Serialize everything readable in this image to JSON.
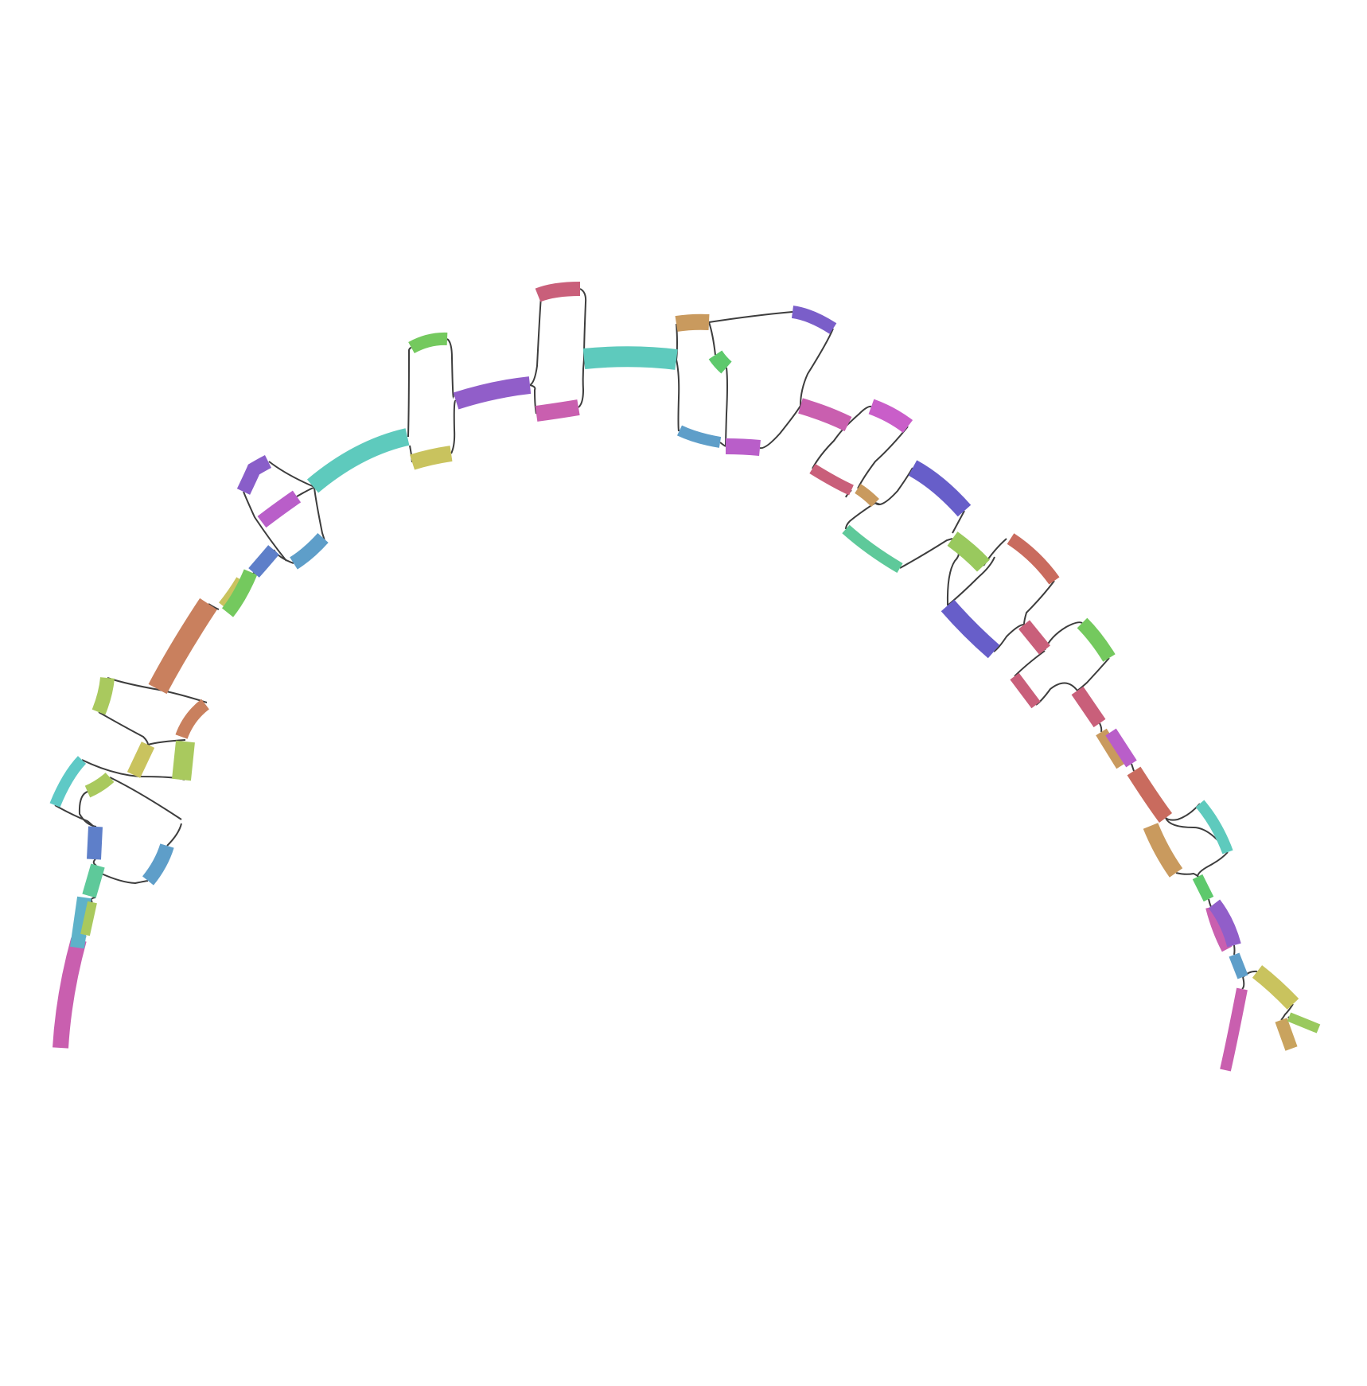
{
  "diagram": {
    "type": "sequence-graph",
    "link_color": "#3d3d3d",
    "background": "#ffffff",
    "segment_colors": [
      "#c95faf",
      "#5eb2c9",
      "#a9c95e",
      "#5ec99a",
      "#5e7fc9",
      "#5e9ec9",
      "#5ec9c6",
      "#c9c35e",
      "#c9805e",
      "#74c95e",
      "#c95f7a",
      "#895ec9",
      "#c9a35e",
      "#675ec9",
      "#c95ec9",
      "#b95ec9",
      "#c96b5e",
      "#99c95e",
      "#5ec97a",
      "#915ec9",
      "#5ecabd",
      "#c99a5e",
      "#5ec96c",
      "#7a5ec9"
    ]
  }
}
